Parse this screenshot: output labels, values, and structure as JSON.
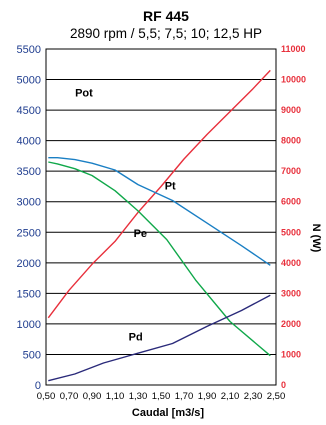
{
  "chart_data": {
    "type": "line",
    "title": "RF 445",
    "subtitle": "2890 rpm / 5,5; 7,5; 10; 12,5 HP",
    "xlabel": "Caudal [m3/s]",
    "ylabel_right": "N (W)",
    "x_ticks": [
      "0,50",
      "0,70",
      "0,90",
      "1,10",
      "1,30",
      "1,50",
      "1,70",
      "1,90",
      "2,10",
      "2,30",
      "2,50"
    ],
    "xlim": [
      0.5,
      2.5
    ],
    "y_ticks_left": [
      "0",
      "500",
      "1000",
      "1500",
      "2000",
      "2500",
      "3000",
      "3500",
      "4000",
      "4500",
      "5000",
      "5500"
    ],
    "ylim_left": [
      0,
      5500
    ],
    "y_ticks_right": [
      "0",
      "1000",
      "2000",
      "3000",
      "4000",
      "5000",
      "6000",
      "7000",
      "8000",
      "9000",
      "10000",
      "11000"
    ],
    "ylim_right": [
      0,
      11000
    ],
    "grid": true,
    "colors": {
      "Pot": "#e8303c",
      "Pt": "#1a7fc4",
      "Pe": "#10a84a",
      "Pd": "#2a2a7a",
      "left_axis": "#1f3d8f",
      "right_axis": "#e8303c"
    },
    "series": [
      {
        "name": "Pot",
        "axis": "right",
        "label_at": [
          0.83,
          9450
        ],
        "x": [
          0.52,
          0.7,
          0.9,
          1.1,
          1.3,
          1.5,
          1.7,
          1.9,
          2.1,
          2.3,
          2.45
        ],
        "y": [
          2200,
          3100,
          3950,
          4700,
          5650,
          6500,
          7400,
          8200,
          8950,
          9700,
          10300
        ]
      },
      {
        "name": "Pt",
        "axis": "left",
        "label_at": [
          1.58,
          3200
        ],
        "x": [
          0.52,
          0.6,
          0.75,
          0.9,
          1.1,
          1.3,
          1.6,
          1.9,
          2.2,
          2.45
        ],
        "y": [
          3720,
          3720,
          3690,
          3630,
          3520,
          3280,
          3020,
          2650,
          2280,
          1960
        ]
      },
      {
        "name": "Pe",
        "axis": "left",
        "label_at": [
          1.32,
          2420
        ],
        "x": [
          0.52,
          0.6,
          0.75,
          0.9,
          1.1,
          1.3,
          1.55,
          1.8,
          2.1,
          2.45
        ],
        "y": [
          3650,
          3620,
          3540,
          3430,
          3180,
          2850,
          2380,
          1720,
          1040,
          480
        ]
      },
      {
        "name": "Pd",
        "axis": "left",
        "label_at": [
          1.28,
          730
        ],
        "x": [
          0.52,
          0.75,
          1.0,
          1.3,
          1.6,
          1.9,
          2.2,
          2.45
        ],
        "y": [
          70,
          180,
          360,
          520,
          680,
          960,
          1220,
          1470
        ]
      }
    ]
  }
}
